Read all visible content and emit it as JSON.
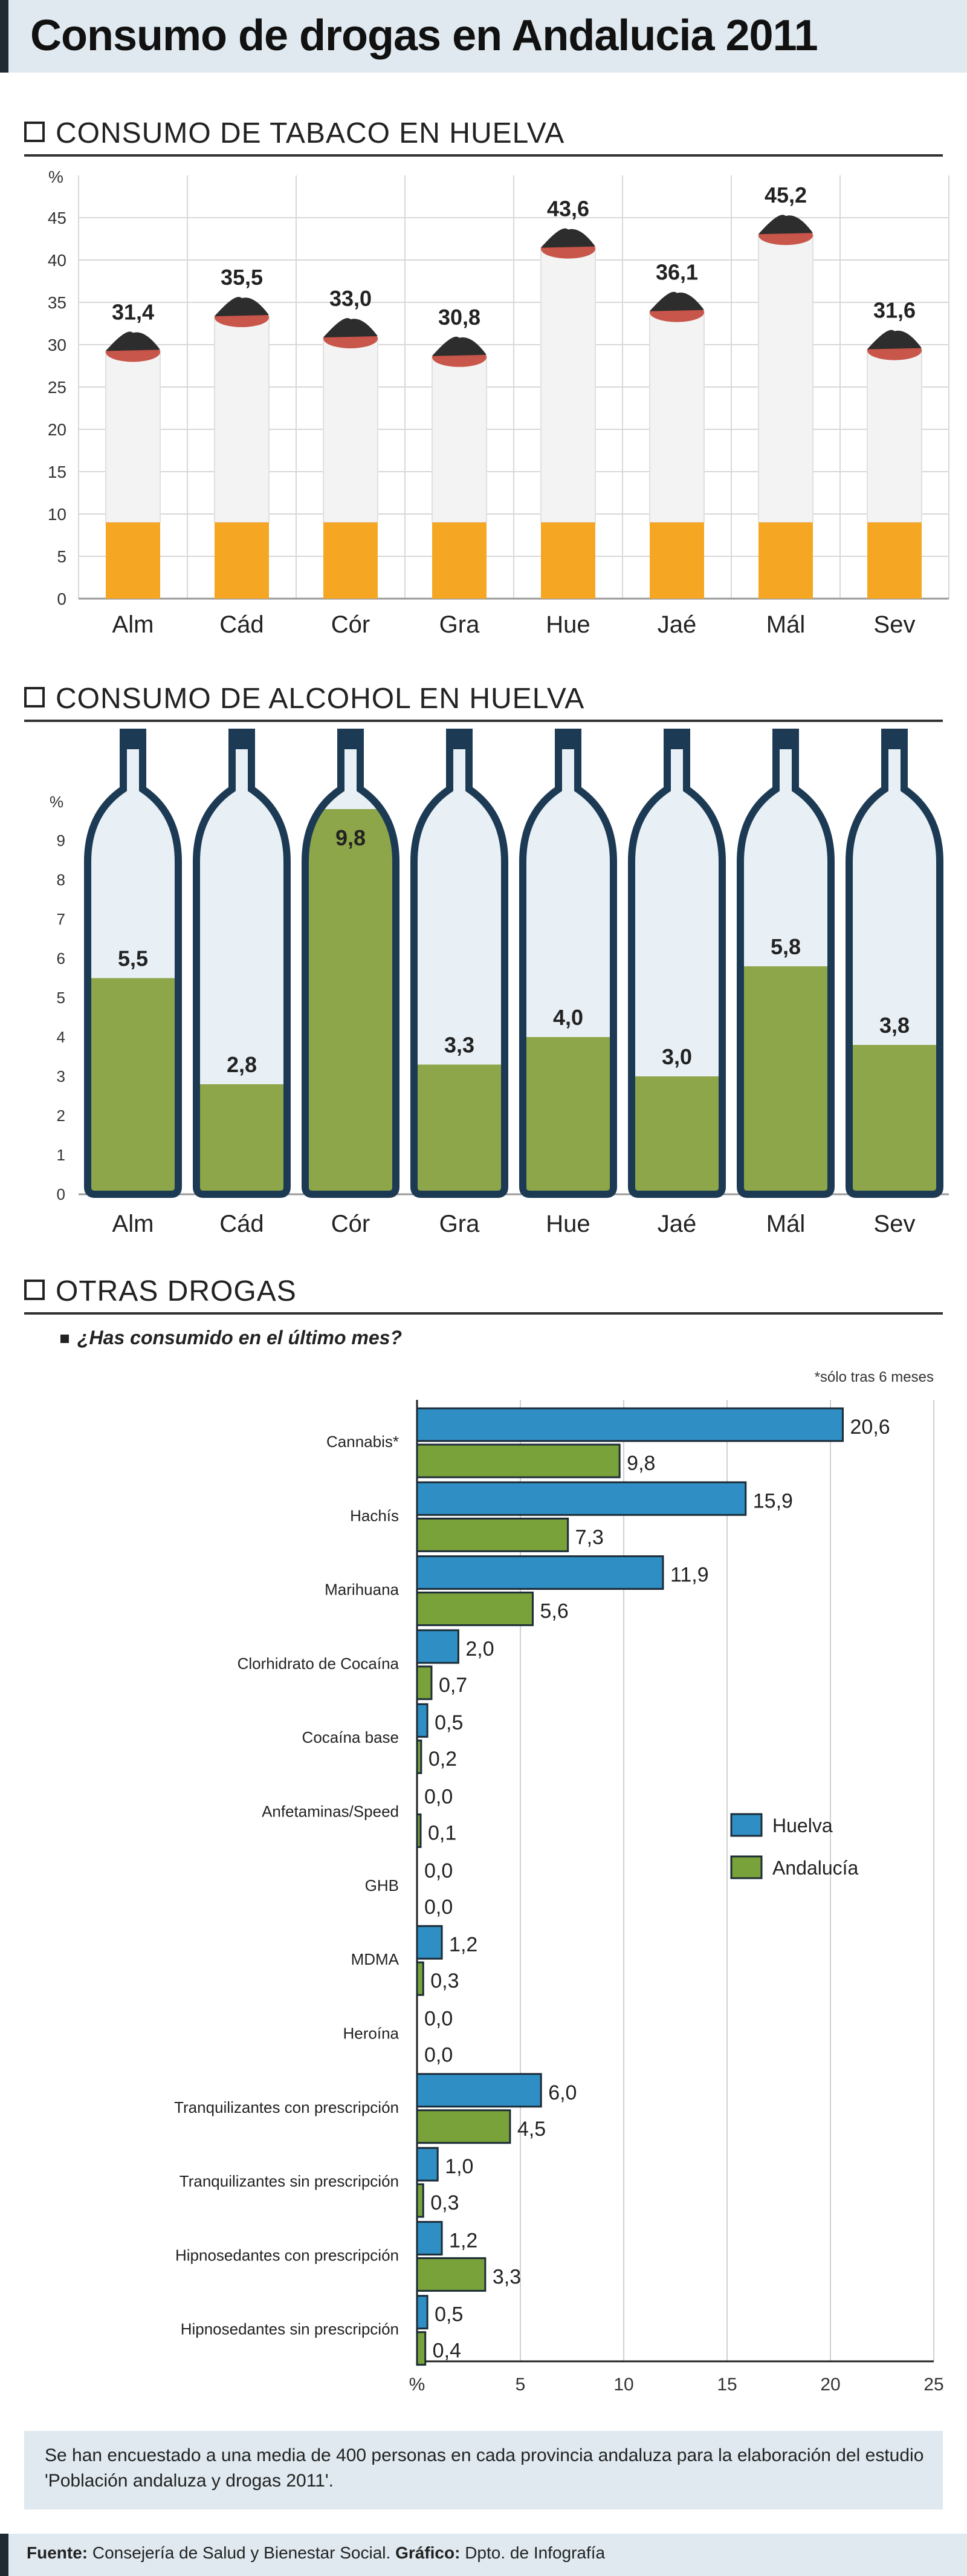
{
  "title": "Consumo de drogas en Andalucia 2011",
  "sections": {
    "tabaco": "CONSUMO DE TABACO EN HUELVA",
    "alcohol": "CONSUMO DE ALCOHOL EN HUELVA",
    "otras": "OTRAS DROGAS"
  },
  "chart_data": [
    {
      "type": "bar",
      "ylabel": "%",
      "categories": [
        "Alm",
        "Cád",
        "Cór",
        "Gra",
        "Hue",
        "Jaé",
        "Mál",
        "Sev"
      ],
      "values": [
        31.4,
        35.5,
        33.0,
        30.8,
        43.6,
        36.1,
        45.2,
        31.6
      ],
      "labels": [
        "31,4",
        "35,5",
        "33,0",
        "30,8",
        "43,6",
        "36,1",
        "45,2",
        "31,6"
      ],
      "yticks": [
        "0",
        "5",
        "10",
        "15",
        "20",
        "25",
        "30",
        "35",
        "40",
        "45"
      ],
      "ylim": [
        0,
        50
      ],
      "grid": true
    },
    {
      "type": "bar",
      "ylabel": "%",
      "categories": [
        "Alm",
        "Cád",
        "Cór",
        "Gra",
        "Hue",
        "Jaé",
        "Mál",
        "Sev"
      ],
      "values": [
        5.5,
        2.8,
        9.8,
        3.3,
        4.0,
        3.0,
        5.8,
        3.8
      ],
      "labels": [
        "5,5",
        "2,8",
        "9,8",
        "3,3",
        "4,0",
        "3,0",
        "5,8",
        "3,8"
      ],
      "yticks": [
        "0",
        "1",
        "2",
        "3",
        "4",
        "5",
        "6",
        "7",
        "8",
        "9"
      ],
      "ylim": [
        0,
        10
      ]
    },
    {
      "type": "bar",
      "subtitle": "¿Has consumido en el último mes?",
      "note": "*sólo tras 6 meses",
      "xlabel": "%",
      "categories": [
        "Cannabis*",
        "Hachís",
        "Marihuana",
        "Clorhidrato de Cocaína",
        "Cocaína base",
        "Anfetaminas/Speed",
        "GHB",
        "MDMA",
        "Heroína",
        "Tranquilizantes con prescripción",
        "Tranquilizantes sin prescripción",
        "Hipnosedantes con prescripción",
        "Hipnosedantes sin prescripción"
      ],
      "series": [
        {
          "name": "Huelva",
          "color": "#2f8fc4",
          "values": [
            20.6,
            15.9,
            11.9,
            2.0,
            0.5,
            0.0,
            0.0,
            1.2,
            0.0,
            6.0,
            1.0,
            1.2,
            0.5
          ],
          "labels": [
            "20,6",
            "15,9",
            "11,9",
            "2,0",
            "0,5",
            "0,0",
            "0,0",
            "1,2",
            "0,0",
            "6,0",
            "1,0",
            "1,2",
            "0,5"
          ]
        },
        {
          "name": "Andalucía",
          "color": "#7aa23a",
          "values": [
            9.8,
            7.3,
            5.6,
            0.7,
            0.2,
            0.1,
            0.0,
            0.3,
            0.0,
            4.5,
            0.3,
            3.3,
            0.4
          ],
          "labels": [
            "9,8",
            "7,3",
            "5,6",
            "0,7",
            "0,2",
            "0,1",
            "0,0",
            "0,3",
            "0,0",
            "4,5",
            "0,3",
            "3,3",
            "0,4"
          ]
        }
      ],
      "xticks": [
        "5",
        "10",
        "15",
        "20",
        "25"
      ],
      "xlim": [
        0,
        25
      ],
      "legend": "right"
    }
  ],
  "footer": {
    "note": "Se han encuestado a una media de 400 personas en cada provincia andaluza para la elaboración del estudio 'Población andaluza y drogas 2011'.",
    "source_label": "Fuente:",
    "source_text": "Consejería de Salud y Bienestar Social.",
    "graphic_label": "Gráfico:",
    "graphic_text": "Dpto. de Infografía"
  }
}
